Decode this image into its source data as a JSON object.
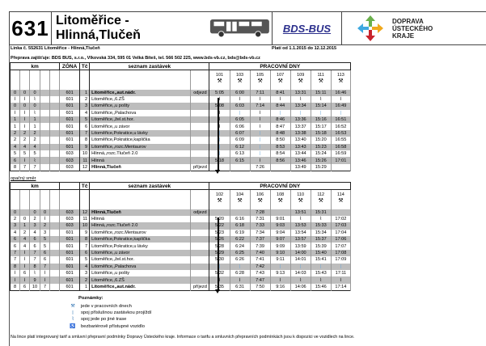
{
  "header": {
    "line_number": "631",
    "title": "Litoměřice - Hlinná,Tlučeň",
    "carrier_logo": "BDS-BUS",
    "region_logo": [
      "DOPRAVA",
      "ÚSTECKÉHO",
      "KRAJE"
    ],
    "line_info": "Linka č. 552631 Litoměřice - Hlinná,Tlučeň",
    "validity": "Platí od 1.1.2015 do 12.12.2015",
    "operator": "Přeprava zajišťuje: BDS BUS, s.r.o., Vlkovská 334, 595 01 Velká Bíteš, tel. 566 502 225, www.bds-vb.cz, bds@bds-vb.cz"
  },
  "colors": {
    "shade": "#bdbdbd",
    "bar": "#6aa8d8"
  },
  "labels": {
    "km": "km",
    "zone": "ZÓNA",
    "tc": "Tč",
    "stops": "seznam zastávek",
    "days": "PRACOVNÍ DNY",
    "depart": "odjezd",
    "arrive": "příjezd",
    "weekday_icon": "⚒",
    "reverse": "opačný směr"
  },
  "outbound": {
    "trips": [
      "101",
      "103",
      "105",
      "107",
      "109",
      "111",
      "113"
    ],
    "rows": [
      {
        "km": [
          "0",
          "0",
          "0",
          "",
          ""
        ],
        "zone": "601",
        "tc": "1",
        "stop": "Litoměřice,,aut.nádr.",
        "bold": true,
        "times": [
          "5:05",
          "6:00",
          "7:11",
          "8:41",
          "13:31",
          "15:11",
          "16:46"
        ]
      },
      {
        "km": [
          "⌇",
          "⌇",
          "⌇",
          "",
          ""
        ],
        "zone": "601",
        "tc": "2",
        "stop": "Litoměřice,,6.ZŠ",
        "times": [
          "⌇",
          "⌇",
          "⌇",
          "⌇",
          "⌇",
          "⌇",
          "⌇"
        ]
      },
      {
        "km": [
          "0",
          "0",
          "0",
          "",
          ""
        ],
        "zone": "601",
        "tc": "3",
        "stop": "Litoměřice,,u pošty",
        "times": [
          "5:08",
          "6:03",
          "7:14",
          "8:44",
          "13:34",
          "15:14",
          "16:49"
        ]
      },
      {
        "km": [
          "⌇",
          "⌇",
          "⌇",
          "",
          ""
        ],
        "zone": "601",
        "tc": "4",
        "stop": "Litoměřice,,Palachova",
        "times": [
          "⌇",
          "|",
          "⌇",
          "|",
          "|",
          "|",
          "|"
        ]
      },
      {
        "km": [
          "1",
          "⌇",
          "1",
          "",
          ""
        ],
        "zone": "601",
        "tc": "5",
        "stop": "Litoměřice,,žel.st.hor.",
        "times": [
          "⌇",
          "6:05",
          "⌇",
          "8:46",
          "13:36",
          "15:16",
          "16:51"
        ]
      },
      {
        "km": [
          "1",
          "⌇",
          "1",
          "",
          ""
        ],
        "zone": "601",
        "tc": "6",
        "stop": "Litoměřice,,u závor",
        "times": [
          "⌇",
          "6:06",
          "⌇",
          "8:47",
          "13:37",
          "15:17",
          "16:52"
        ]
      },
      {
        "km": [
          "2",
          "2",
          "2",
          "",
          ""
        ],
        "zone": "601",
        "tc": "7",
        "stop": "Litoměřice,Pokratice,u lávky",
        "times": [
          "|",
          "6:07",
          "|",
          "8:48",
          "13:38",
          "15:18",
          "16:53"
        ]
      },
      {
        "km": [
          "2",
          "2",
          "2",
          "",
          ""
        ],
        "zone": "601",
        "tc": "8",
        "stop": "Litoměřice,Pokratice,kaplička",
        "times": [
          "|",
          "6:09",
          "|",
          "8:50",
          "13:40",
          "15:20",
          "16:55"
        ]
      },
      {
        "km": [
          "4",
          "4",
          "4",
          "",
          ""
        ],
        "zone": "601",
        "tc": "9",
        "stop": "Litoměřice,,rozc.Mentaurov",
        "times": [
          "|",
          "6:12",
          "|",
          "8:53",
          "13:43",
          "15:23",
          "16:58"
        ]
      },
      {
        "km": [
          "5",
          "5",
          "5",
          "",
          ""
        ],
        "zone": "603",
        "tc": "10",
        "stop": "Hlinná,,rozc.Tlučeň 2.0",
        "times": [
          "|",
          "6:13",
          "|",
          "8:54",
          "13:44",
          "15:24",
          "16:59"
        ]
      },
      {
        "km": [
          "6",
          "⌇",
          "⌇",
          "",
          ""
        ],
        "zone": "603",
        "tc": "11",
        "stop": "Hlinná",
        "times": [
          "5:18",
          "6:15",
          "⌇",
          "8:56",
          "13:46",
          "15:26",
          "17:01"
        ]
      },
      {
        "km": [
          "8",
          "7",
          "7",
          "",
          ""
        ],
        "zone": "603",
        "tc": "12",
        "stop": "Hlinná,Tlučeň",
        "bold": true,
        "times": [
          "",
          "",
          "7:26",
          "",
          "13:49",
          "15:29",
          ""
        ]
      }
    ]
  },
  "inbound": {
    "trips": [
      "102",
      "104",
      "106",
      "108",
      "110",
      "112",
      "114"
    ],
    "rows": [
      {
        "km": [
          "0",
          "",
          "0",
          "0",
          ""
        ],
        "zone": "603",
        "tc": "12",
        "stop": "Hlinná,Tlučeň",
        "bold": true,
        "times": [
          "",
          "",
          "7:28",
          "",
          "13:51",
          "15:31",
          ""
        ]
      },
      {
        "km": [
          "2",
          "0",
          "2",
          "⌇",
          ""
        ],
        "zone": "603",
        "tc": "11",
        "stop": "Hlinná",
        "times": [
          "5:20",
          "6:16",
          "7:31",
          "9:01",
          "⌇",
          "⌇",
          "17:02"
        ]
      },
      {
        "km": [
          "3",
          "1",
          "3",
          "2",
          ""
        ],
        "zone": "603",
        "tc": "10",
        "stop": "Hlinná,,rozc.Tlučeň 2.0",
        "times": [
          "5:22",
          "6:18",
          "7:33",
          "9:03",
          "13:53",
          "15:33",
          "17:03"
        ]
      },
      {
        "km": [
          "4",
          "2",
          "4",
          "3",
          ""
        ],
        "zone": "601",
        "tc": "9",
        "stop": "Litoměřice,,rozc.Mentaurov",
        "times": [
          "5:23",
          "6:19",
          "7:34",
          "9:04",
          "13:54",
          "15:34",
          "17:04"
        ]
      },
      {
        "km": [
          "6",
          "4",
          "6",
          "5",
          ""
        ],
        "zone": "601",
        "tc": "8",
        "stop": "Litoměřice,Pokratice,kaplička",
        "times": [
          "5:26",
          "6:22",
          "7:37",
          "9:07",
          "13:57",
          "15:37",
          "17:06"
        ]
      },
      {
        "km": [
          "6",
          "4",
          "6",
          "5",
          ""
        ],
        "zone": "601",
        "tc": "7",
        "stop": "Litoměřice,Pokratice,u lávky",
        "times": [
          "5:28",
          "6:24",
          "7:39",
          "9:09",
          "13:59",
          "15:39",
          "17:07"
        ]
      },
      {
        "km": [
          "7",
          "⌇",
          "7",
          "6",
          ""
        ],
        "zone": "601",
        "tc": "6",
        "stop": "Litoměřice,,u závor",
        "times": [
          "5:29",
          "6:25",
          "7:40",
          "9:10",
          "14:00",
          "15:40",
          "17:08"
        ]
      },
      {
        "km": [
          "7",
          "⌇",
          "7",
          "6",
          ""
        ],
        "zone": "601",
        "tc": "5",
        "stop": "Litoměřice,,žel.st.hor.",
        "times": [
          "5:30",
          "6:26",
          "7:41",
          "9:11",
          "14:01",
          "15:41",
          "17:09"
        ]
      },
      {
        "km": [
          "8",
          "⌇",
          "8",
          "7",
          ""
        ],
        "zone": "601",
        "tc": "4",
        "stop": "Litoměřice,,Palachova",
        "times": [
          "|",
          "|",
          "7:42",
          "|",
          "|",
          "|",
          "|"
        ]
      },
      {
        "km": [
          "⌇",
          "6",
          "⌇",
          "⌇",
          ""
        ],
        "zone": "601",
        "tc": "3",
        "stop": "Litoměřice,,u pošty",
        "times": [
          "5:32",
          "6:28",
          "7:43",
          "9:13",
          "14:03",
          "15:43",
          "17:11"
        ]
      },
      {
        "km": [
          "⌇",
          "⌇",
          "9",
          "⌇",
          ""
        ],
        "zone": "601",
        "tc": "2",
        "stop": "Litoměřice,,6.ZŠ",
        "times": [
          "⌇",
          "⌇",
          "7:47",
          "⌇",
          "⌇",
          "⌇",
          "⌇"
        ]
      },
      {
        "km": [
          "8",
          "6",
          "10",
          "7",
          ""
        ],
        "zone": "601",
        "tc": "1",
        "stop": "Litoměřice,,aut.nádr.",
        "bold": true,
        "times": [
          "5:35",
          "6:31",
          "7:50",
          "9:16",
          "14:06",
          "15:46",
          "17:14"
        ]
      }
    ]
  },
  "notes": {
    "title": "Poznámky:",
    "items": [
      {
        "icon": "⚒",
        "text": "jede v pracovních dnech"
      },
      {
        "icon": "|",
        "text": "spoj příslušnou zastávkou projíždí"
      },
      {
        "icon": "⌇",
        "text": "spoj jede po jiné trase"
      },
      {
        "icon": "♿",
        "text": "bezbariérově přístupné vozidlo"
      }
    ]
  },
  "footer": "Na lince platí integrovaný tarif a smluvní přepravní podmínky Dopravy Ústeckého kraje. Informace o tarifu a smluvních přepravních podmínkách jsou k dispozici ve vozidlech na lince."
}
